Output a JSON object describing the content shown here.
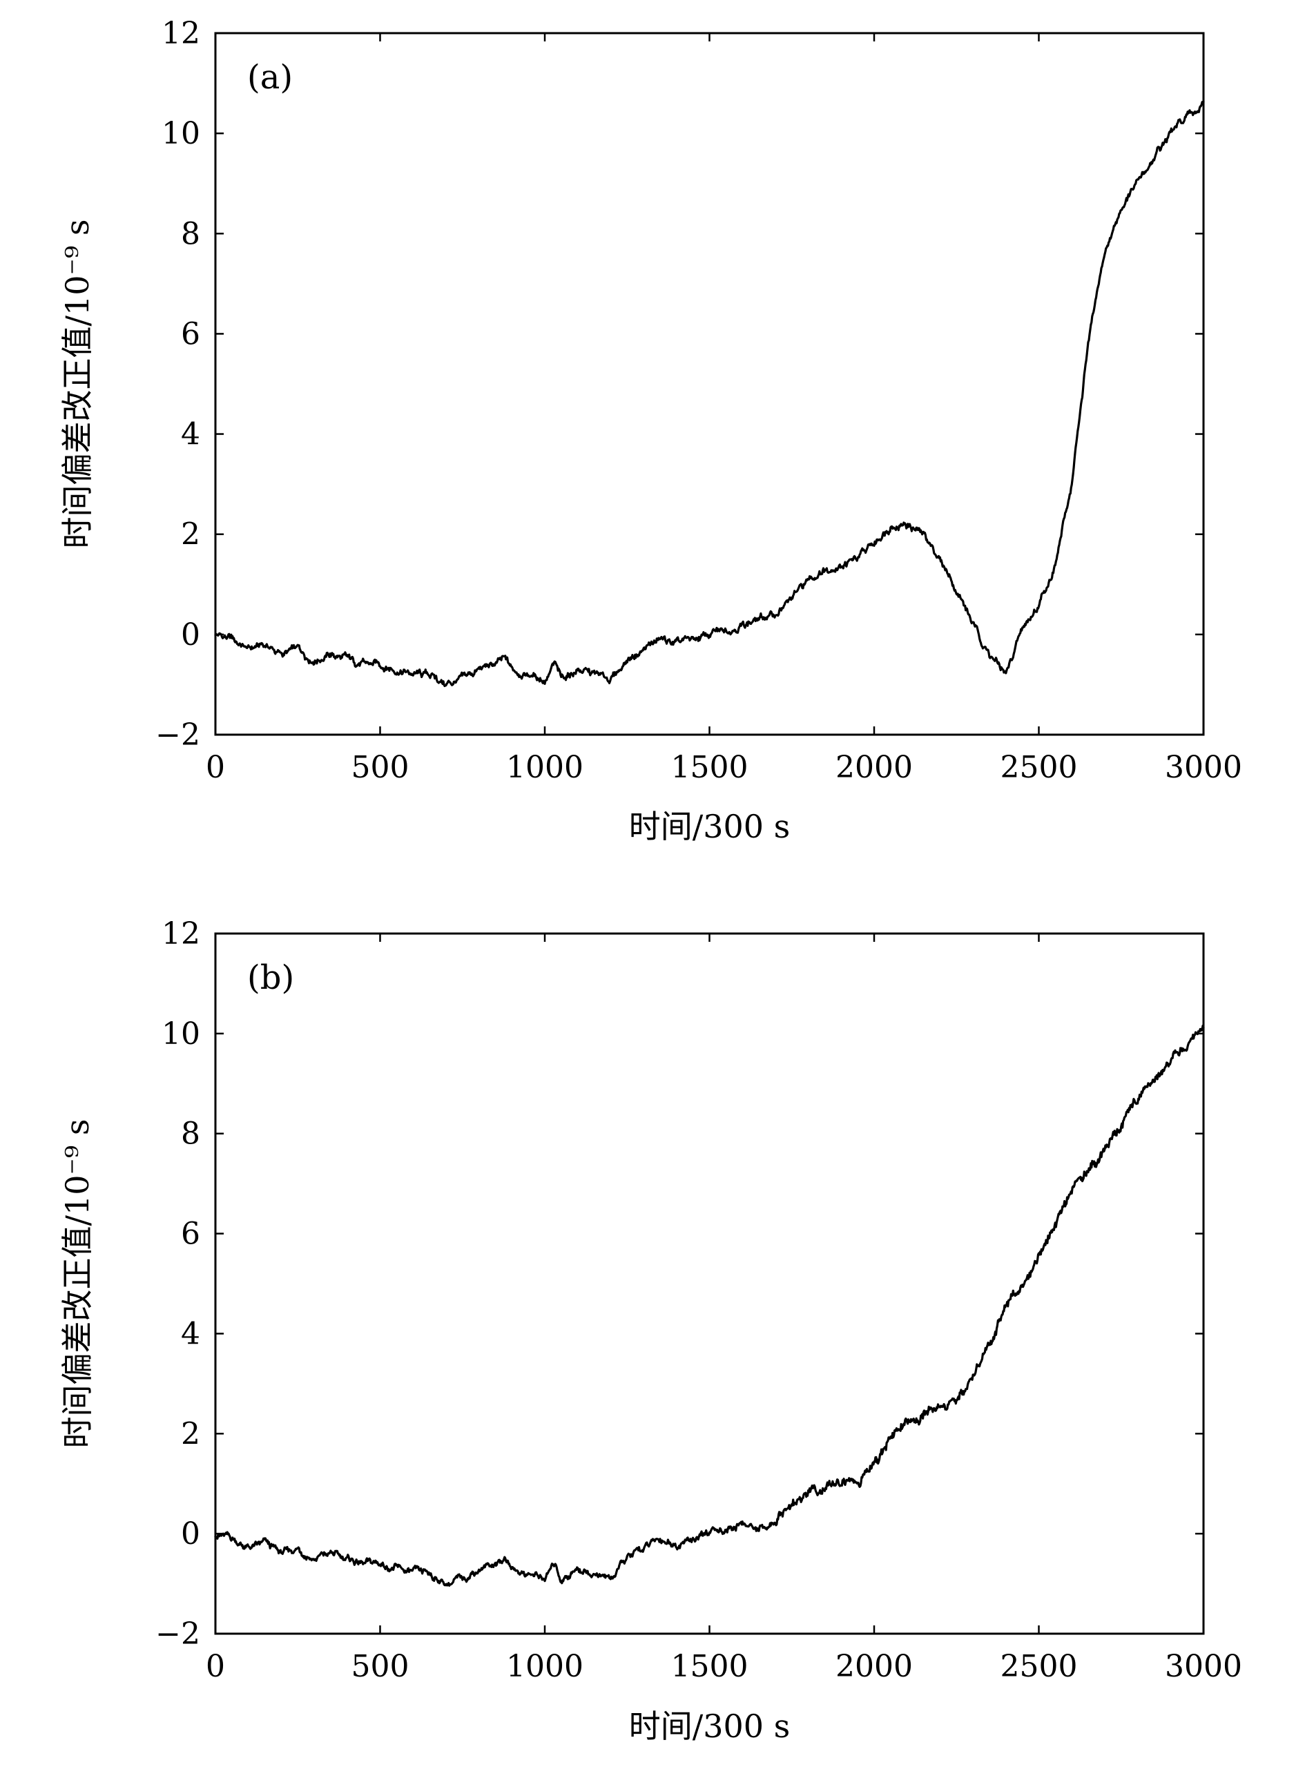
{
  "chart_data": [
    {
      "type": "line",
      "panel_label": "(a)",
      "xlabel": "时间/300 s",
      "ylabel": "时间偏差改正值/10⁻⁹ s",
      "xlim": [
        0,
        3000
      ],
      "ylim": [
        -2,
        12
      ],
      "xticks": [
        0,
        500,
        1000,
        1500,
        2000,
        2500,
        3000
      ],
      "xtick_labels": [
        "0",
        "500",
        "1000",
        "1500",
        "2000",
        "2500",
        "3000"
      ],
      "yticks": [
        -2,
        0,
        2,
        4,
        6,
        8,
        10,
        12
      ],
      "ytick_labels": [
        "−2",
        "0",
        "2",
        "4",
        "6",
        "8",
        "10",
        "12"
      ],
      "grid": false,
      "series": [
        {
          "color": "#000000",
          "x": [
            0,
            50,
            100,
            150,
            200,
            250,
            300,
            350,
            400,
            450,
            500,
            550,
            600,
            650,
            700,
            750,
            800,
            850,
            880,
            900,
            950,
            1000,
            1030,
            1050,
            1100,
            1150,
            1200,
            1250,
            1300,
            1350,
            1400,
            1450,
            1500,
            1550,
            1600,
            1650,
            1700,
            1750,
            1800,
            1850,
            1900,
            1950,
            2000,
            2050,
            2100,
            2150,
            2200,
            2250,
            2300,
            2350,
            2400,
            2450,
            2500,
            2550,
            2600,
            2650,
            2700,
            2750,
            2800,
            2850,
            2900,
            2950,
            3000
          ],
          "y": [
            0.0,
            -0.1,
            -0.3,
            -0.2,
            -0.4,
            -0.3,
            -0.5,
            -0.4,
            -0.5,
            -0.6,
            -0.6,
            -0.7,
            -0.8,
            -0.8,
            -1.0,
            -0.9,
            -0.7,
            -0.6,
            -0.5,
            -0.7,
            -0.8,
            -0.9,
            -0.6,
            -0.9,
            -0.7,
            -0.8,
            -0.9,
            -0.5,
            -0.3,
            -0.1,
            -0.2,
            -0.1,
            0.0,
            0.1,
            0.2,
            0.3,
            0.4,
            0.7,
            1.1,
            1.3,
            1.4,
            1.5,
            1.8,
            2.2,
            2.2,
            2.0,
            1.5,
            0.9,
            0.2,
            -0.4,
            -0.8,
            0.1,
            0.6,
            1.4,
            3.0,
            5.8,
            7.6,
            8.5,
            9.0,
            9.5,
            10.0,
            10.3,
            10.6
          ]
        }
      ]
    },
    {
      "type": "line",
      "panel_label": "(b)",
      "xlabel": "时间/300 s",
      "ylabel": "时间偏差改正值/10⁻⁹ s",
      "xlim": [
        0,
        3000
      ],
      "ylim": [
        -2,
        12
      ],
      "xticks": [
        0,
        500,
        1000,
        1500,
        2000,
        2500,
        3000
      ],
      "xtick_labels": [
        "0",
        "500",
        "1000",
        "1500",
        "2000",
        "2500",
        "3000"
      ],
      "yticks": [
        -2,
        0,
        2,
        4,
        6,
        8,
        10,
        12
      ],
      "ytick_labels": [
        "−2",
        "0",
        "2",
        "4",
        "6",
        "8",
        "10",
        "12"
      ],
      "grid": false,
      "series": [
        {
          "color": "#000000",
          "x": [
            0,
            50,
            100,
            150,
            200,
            250,
            300,
            350,
            400,
            450,
            500,
            550,
            600,
            650,
            700,
            750,
            800,
            850,
            880,
            900,
            950,
            1000,
            1030,
            1050,
            1100,
            1150,
            1200,
            1250,
            1300,
            1350,
            1400,
            1450,
            1500,
            1550,
            1600,
            1650,
            1700,
            1750,
            1800,
            1850,
            1900,
            1950,
            2000,
            2050,
            2100,
            2150,
            2200,
            2250,
            2300,
            2350,
            2400,
            2450,
            2500,
            2550,
            2600,
            2650,
            2700,
            2750,
            2800,
            2850,
            2900,
            2950,
            3000
          ],
          "y": [
            0.0,
            -0.1,
            -0.3,
            -0.2,
            -0.4,
            -0.3,
            -0.5,
            -0.4,
            -0.5,
            -0.6,
            -0.6,
            -0.7,
            -0.8,
            -0.8,
            -1.0,
            -0.9,
            -0.7,
            -0.6,
            -0.5,
            -0.7,
            -0.8,
            -0.9,
            -0.6,
            -0.9,
            -0.7,
            -0.8,
            -0.9,
            -0.5,
            -0.3,
            -0.1,
            -0.2,
            -0.1,
            0.0,
            0.1,
            0.2,
            0.1,
            0.2,
            0.6,
            0.8,
            0.9,
            1.0,
            1.0,
            1.4,
            1.9,
            2.2,
            2.4,
            2.5,
            2.7,
            3.2,
            3.8,
            4.5,
            5.0,
            5.6,
            6.2,
            6.8,
            7.3,
            7.7,
            8.2,
            8.7,
            9.1,
            9.5,
            9.8,
            10.1
          ]
        }
      ]
    }
  ]
}
